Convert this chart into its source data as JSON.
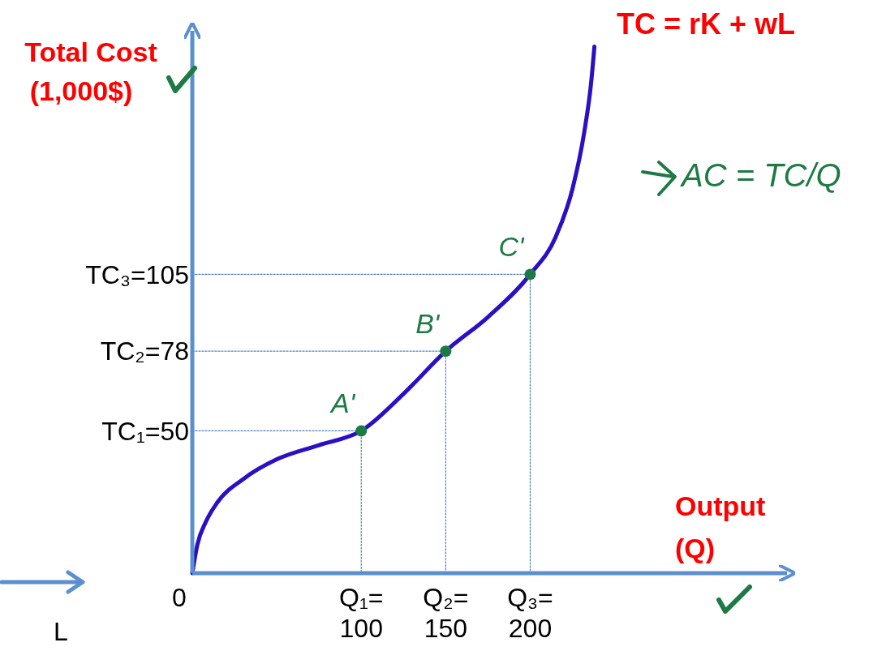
{
  "chart_data": {
    "type": "line",
    "title": "TC = rK + wL",
    "xlabel": "Output (Q)",
    "ylabel": "Total Cost (1,000$)",
    "xlim": [
      0,
      352
    ],
    "ylim": [
      0,
      190
    ],
    "xticks": [
      {
        "value": 0,
        "label": "0"
      },
      {
        "value": 100,
        "label": "Q₁= 100"
      },
      {
        "value": 150,
        "label": "Q₂= 150"
      },
      {
        "value": 200,
        "label": "Q₃= 200"
      }
    ],
    "yticks": [
      {
        "value": 50,
        "label": "TC₁=50"
      },
      {
        "value": 78,
        "label": "TC₂=78"
      },
      {
        "value": 105,
        "label": "TC₃=105"
      }
    ],
    "series": [
      {
        "color": "#2b0fc4",
        "x": [
          0,
          3,
          8,
          15,
          30,
          50,
          75,
          100,
          125,
          150,
          175,
          200,
          215,
          225,
          232,
          236,
          238
        ],
        "values": [
          0,
          10,
          18,
          25,
          33,
          40,
          45,
          50,
          63,
          78,
          90,
          105,
          118,
          135,
          155,
          172,
          185
        ],
        "line_style": "solid",
        "marker": "none"
      },
      {
        "type": "line",
        "color": "#4f81bd",
        "x": [
          0,
          100,
          100
        ],
        "values": [
          50,
          50,
          0
        ],
        "line_style": "dotted",
        "marker": "none"
      },
      {
        "type": "line",
        "color": "#4f81bd",
        "x": [
          0,
          150,
          150
        ],
        "values": [
          78,
          78,
          0
        ],
        "line_style": "dotted",
        "marker": "none"
      },
      {
        "type": "line",
        "color": "#4f81bd",
        "x": [
          0,
          200,
          200
        ],
        "values": [
          105,
          105,
          0
        ],
        "line_style": "dotted",
        "marker": "none"
      },
      {
        "type": "scatter",
        "color": "#1e7a44",
        "x": [
          100,
          150,
          200
        ],
        "values": [
          50,
          78,
          105
        ],
        "marker": "circle"
      }
    ],
    "annotations": [
      {
        "text": "A'",
        "x": 100,
        "y": 50
      },
      {
        "text": "B'",
        "x": 150,
        "y": 78
      },
      {
        "text": "C'",
        "x": 200,
        "y": 105
      },
      "AC = TC/Q",
      "L"
    ],
    "grid": false
  }
}
